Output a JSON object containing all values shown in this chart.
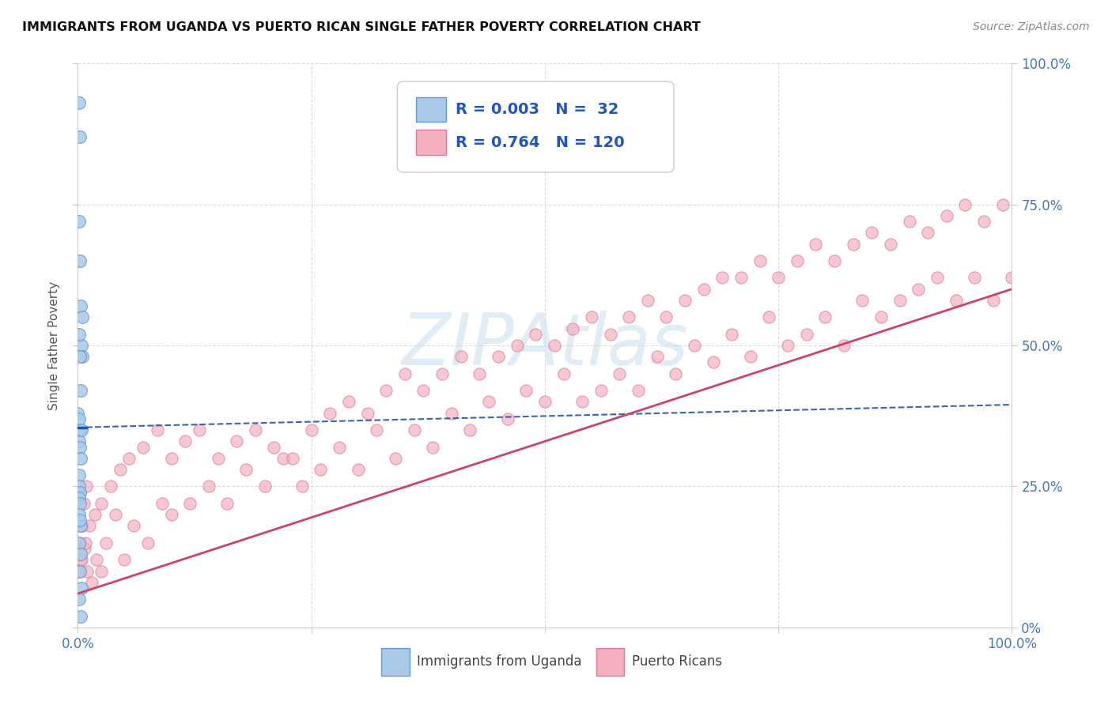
{
  "title": "IMMIGRANTS FROM UGANDA VS PUERTO RICAN SINGLE FATHER POVERTY CORRELATION CHART",
  "source_text": "Source: ZipAtlas.com",
  "ylabel": "Single Father Poverty",
  "xlim": [
    0.0,
    1.0
  ],
  "ylim": [
    0.0,
    1.0
  ],
  "watermark_text": "ZIPAtlas",
  "legend_R_blue": "0.003",
  "legend_N_blue": " 32",
  "legend_R_pink": "0.764",
  "legend_N_pink": "120",
  "blue_scatter_color": "#aac8e8",
  "blue_edge_color": "#6699cc",
  "blue_line_color": "#2255aa",
  "pink_scatter_color": "#f5b0c0",
  "pink_edge_color": "#dd7799",
  "pink_line_color": "#cc4466",
  "legend_text_color": "#2255bb",
  "background_color": "#ffffff",
  "title_color": "#111111",
  "watermark_color": "#c8ddf0",
  "grid_color": "#dddddd",
  "tick_label_color": "#4477bb",
  "source_color": "#888888",
  "blue_x": [
    0.001,
    0.002,
    0.003,
    0.004,
    0.005,
    0.001,
    0.002,
    0.003,
    0.0,
    0.001,
    0.002,
    0.001,
    0.002,
    0.003,
    0.001,
    0.001,
    0.002,
    0.001,
    0.002,
    0.003,
    0.004,
    0.001,
    0.002,
    0.001,
    0.003,
    0.002,
    0.004,
    0.001,
    0.002,
    0.001,
    0.005,
    0.003
  ],
  "blue_y": [
    0.93,
    0.87,
    0.57,
    0.5,
    0.48,
    0.52,
    0.48,
    0.42,
    0.38,
    0.37,
    0.35,
    0.33,
    0.32,
    0.3,
    0.27,
    0.25,
    0.24,
    0.23,
    0.22,
    0.18,
    0.35,
    0.2,
    0.19,
    0.15,
    0.13,
    0.1,
    0.07,
    0.05,
    0.65,
    0.72,
    0.55,
    0.02
  ],
  "pink_x": [
    0.002,
    0.003,
    0.005,
    0.007,
    0.01,
    0.015,
    0.02,
    0.025,
    0.03,
    0.04,
    0.05,
    0.06,
    0.075,
    0.09,
    0.1,
    0.12,
    0.14,
    0.16,
    0.18,
    0.2,
    0.22,
    0.24,
    0.26,
    0.28,
    0.3,
    0.32,
    0.34,
    0.36,
    0.38,
    0.4,
    0.42,
    0.44,
    0.46,
    0.48,
    0.5,
    0.52,
    0.54,
    0.56,
    0.58,
    0.6,
    0.62,
    0.64,
    0.66,
    0.68,
    0.7,
    0.72,
    0.74,
    0.76,
    0.78,
    0.8,
    0.82,
    0.84,
    0.86,
    0.88,
    0.9,
    0.92,
    0.94,
    0.96,
    0.98,
    1.0,
    0.001,
    0.004,
    0.008,
    0.012,
    0.018,
    0.025,
    0.035,
    0.045,
    0.055,
    0.07,
    0.085,
    0.1,
    0.115,
    0.13,
    0.15,
    0.17,
    0.19,
    0.21,
    0.23,
    0.25,
    0.27,
    0.29,
    0.31,
    0.33,
    0.35,
    0.37,
    0.39,
    0.41,
    0.43,
    0.45,
    0.47,
    0.49,
    0.51,
    0.53,
    0.55,
    0.57,
    0.59,
    0.61,
    0.63,
    0.65,
    0.67,
    0.69,
    0.71,
    0.73,
    0.75,
    0.77,
    0.79,
    0.81,
    0.83,
    0.85,
    0.87,
    0.89,
    0.91,
    0.93,
    0.95,
    0.97,
    0.99,
    0.003,
    0.006,
    0.009
  ],
  "pink_y": [
    0.15,
    0.12,
    0.18,
    0.14,
    0.1,
    0.08,
    0.12,
    0.1,
    0.15,
    0.2,
    0.12,
    0.18,
    0.15,
    0.22,
    0.2,
    0.22,
    0.25,
    0.22,
    0.28,
    0.25,
    0.3,
    0.25,
    0.28,
    0.32,
    0.28,
    0.35,
    0.3,
    0.35,
    0.32,
    0.38,
    0.35,
    0.4,
    0.37,
    0.42,
    0.4,
    0.45,
    0.4,
    0.42,
    0.45,
    0.42,
    0.48,
    0.45,
    0.5,
    0.47,
    0.52,
    0.48,
    0.55,
    0.5,
    0.52,
    0.55,
    0.5,
    0.58,
    0.55,
    0.58,
    0.6,
    0.62,
    0.58,
    0.62,
    0.58,
    0.62,
    0.1,
    0.12,
    0.15,
    0.18,
    0.2,
    0.22,
    0.25,
    0.28,
    0.3,
    0.32,
    0.35,
    0.3,
    0.33,
    0.35,
    0.3,
    0.33,
    0.35,
    0.32,
    0.3,
    0.35,
    0.38,
    0.4,
    0.38,
    0.42,
    0.45,
    0.42,
    0.45,
    0.48,
    0.45,
    0.48,
    0.5,
    0.52,
    0.5,
    0.53,
    0.55,
    0.52,
    0.55,
    0.58,
    0.55,
    0.58,
    0.6,
    0.62,
    0.62,
    0.65,
    0.62,
    0.65,
    0.68,
    0.65,
    0.68,
    0.7,
    0.68,
    0.72,
    0.7,
    0.73,
    0.75,
    0.72,
    0.75,
    0.18,
    0.22,
    0.25
  ],
  "pink_line_start_y": 0.06,
  "pink_line_end_y": 0.6,
  "blue_line_y": 0.355
}
